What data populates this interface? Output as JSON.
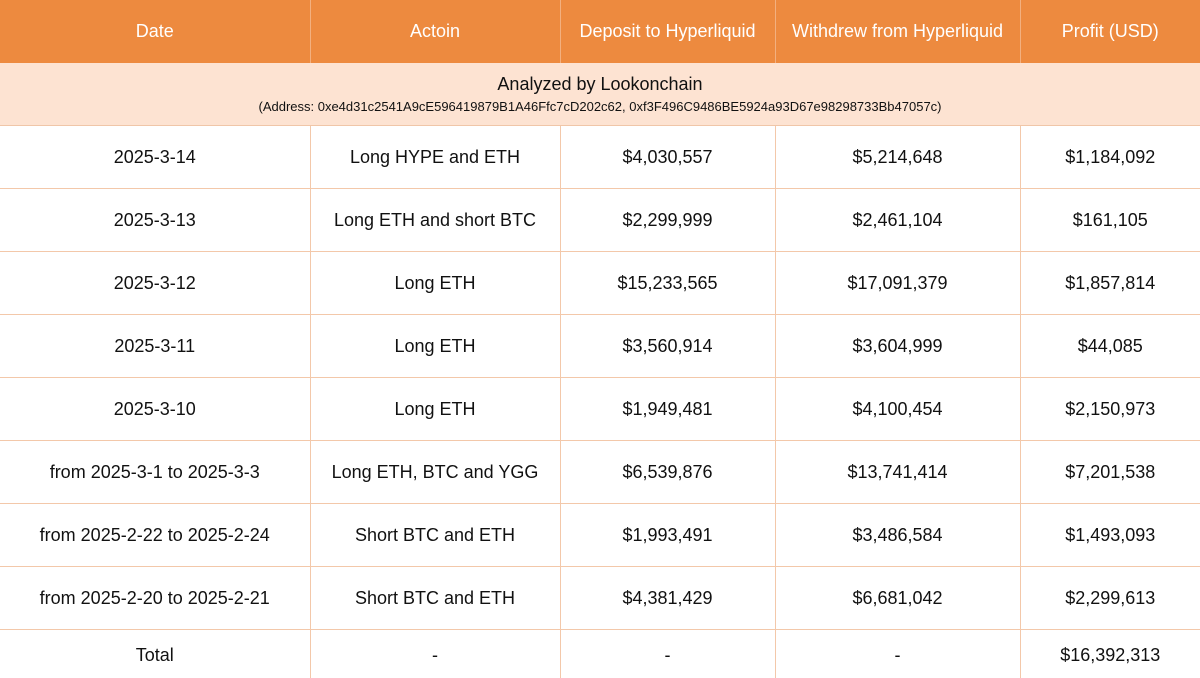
{
  "headers": [
    "Date",
    "Actoin",
    "Deposit to Hyperliquid",
    "Withdrew from Hyperliquid",
    "Profit (USD)"
  ],
  "info": {
    "title": "Analyzed by Lookonchain",
    "address": "(Address: 0xe4d31c2541A9cE596419879B1A46Ffc7cD202c62, 0xf3F496C9486BE5924a93D67e98298733Bb47057c)"
  },
  "rows": [
    [
      "2025-3-14",
      "Long HYPE and ETH",
      "$4,030,557",
      "$5,214,648",
      "$1,184,092"
    ],
    [
      "2025-3-13",
      "Long ETH and short BTC",
      "$2,299,999",
      "$2,461,104",
      "$161,105"
    ],
    [
      "2025-3-12",
      "Long ETH",
      "$15,233,565",
      "$17,091,379",
      "$1,857,814"
    ],
    [
      "2025-3-11",
      "Long ETH",
      "$3,560,914",
      "$3,604,999",
      "$44,085"
    ],
    [
      "2025-3-10",
      "Long ETH",
      "$1,949,481",
      "$4,100,454",
      "$2,150,973"
    ],
    [
      "from 2025-3-1 to 2025-3-3",
      "Long ETH, BTC and YGG",
      "$6,539,876",
      "$13,741,414",
      "$7,201,538"
    ],
    [
      "from 2025-2-22 to 2025-2-24",
      "Short BTC and ETH",
      "$1,993,491",
      "$3,486,584",
      "$1,493,093"
    ],
    [
      "from 2025-2-20 to 2025-2-21",
      "Short BTC and ETH",
      "$4,381,429",
      "$6,681,042",
      "$2,299,613"
    ]
  ],
  "total": [
    "Total",
    "-",
    "-",
    "-",
    "$16,392,313"
  ],
  "colors": {
    "header_bg": "#ed8a3f",
    "info_bg": "#fde3d2",
    "grid": "#f3c8aa"
  }
}
